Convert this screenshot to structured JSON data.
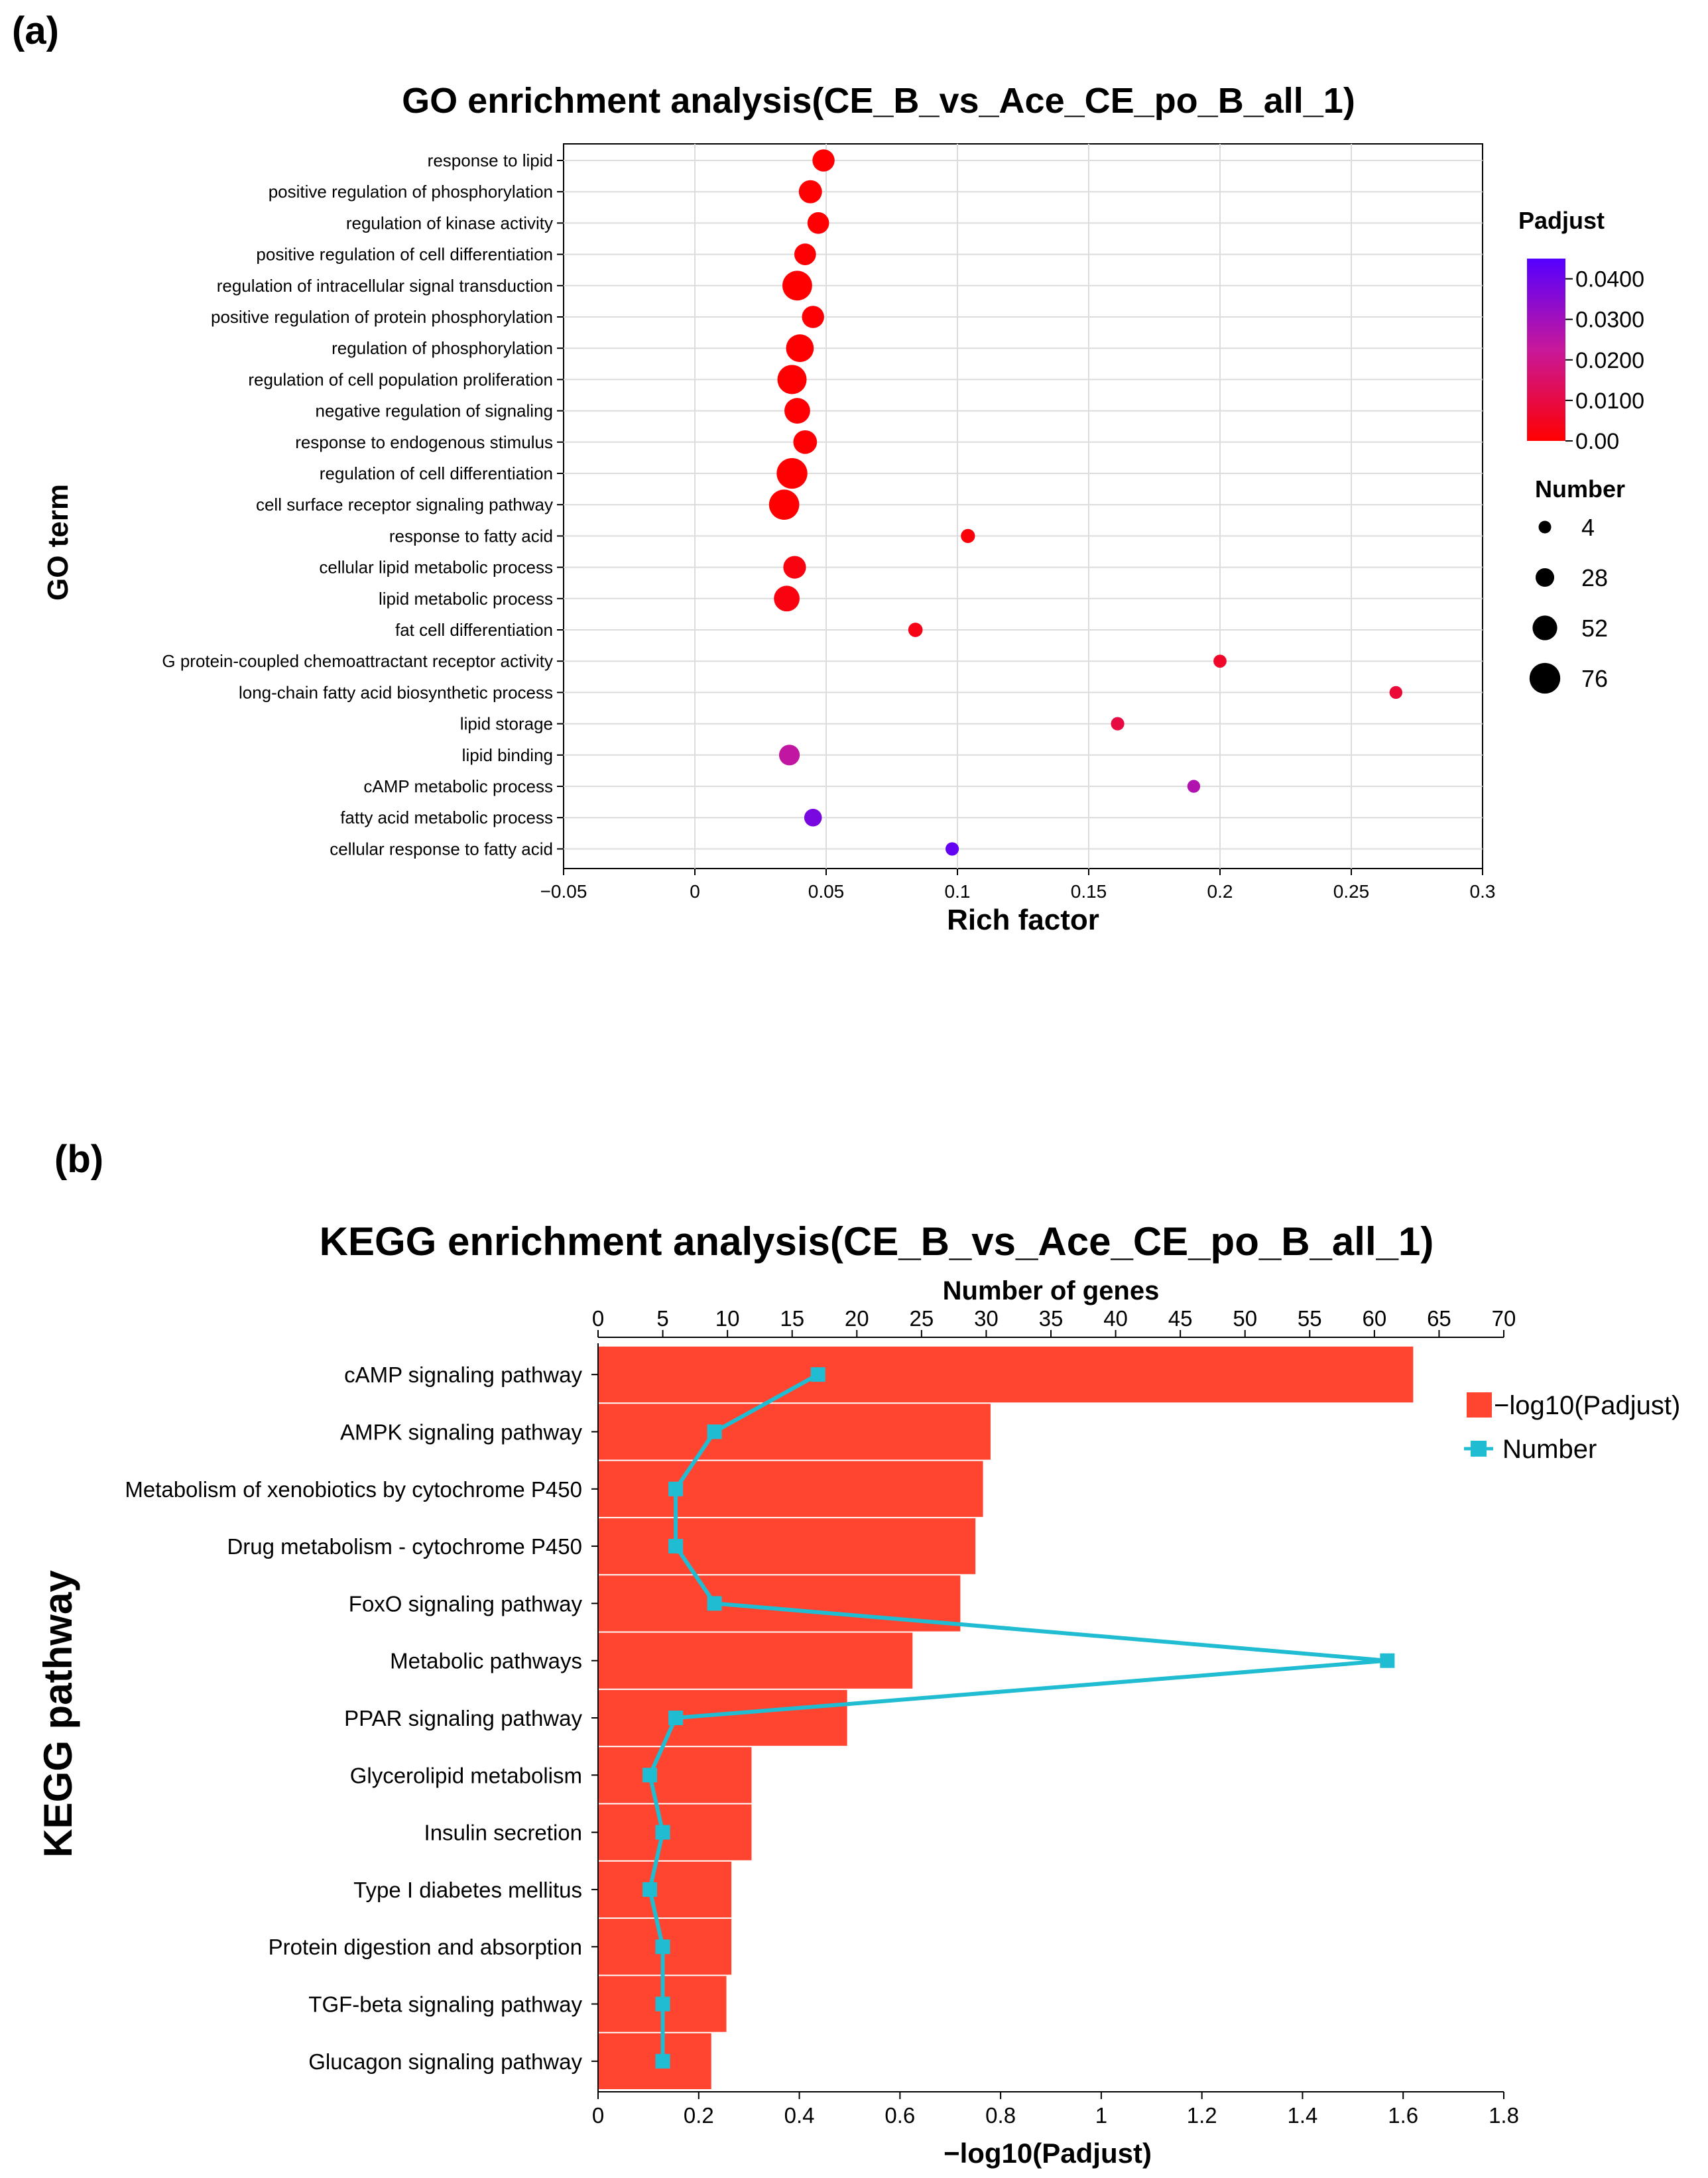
{
  "panel_labels": {
    "a": "(a)",
    "b": "(b)"
  },
  "colors": {
    "padj_low": "#ff0000",
    "padj_high": "#5500ff",
    "bar": "#ff4530",
    "line": "#1fbcd2",
    "grid": "#dcdcdc"
  },
  "chart_data": [
    {
      "id": "go",
      "type": "scatter",
      "title": "GO enrichment analysis(CE_B_vs_Ace_CE_po_B_all_1)",
      "xlabel": "Rich factor",
      "ylabel": "GO term",
      "xlim": [
        -0.05,
        0.3
      ],
      "xticks": [
        -0.05,
        0,
        0.05,
        0.1,
        0.15,
        0.2,
        0.25,
        0.3
      ],
      "xtick_labels": [
        "−0.05",
        "0",
        "0.05",
        "0.1",
        "0.15",
        "0.2",
        "0.25",
        "0.3"
      ],
      "color_legend": {
        "title": "Padjust",
        "min": 0,
        "max": 0.045,
        "ticks": [
          0,
          0.01,
          0.02,
          0.03,
          0.04
        ],
        "tick_labels": [
          "0.00",
          "0.0100",
          "0.0200",
          "0.0300",
          "0.0400"
        ]
      },
      "size_legend": {
        "title": "Number",
        "values": [
          4,
          28,
          52,
          76
        ]
      },
      "terms": [
        {
          "label": "response to lipid",
          "rich_factor": 0.049,
          "padjust": 0.0003,
          "number": 42
        },
        {
          "label": "positive regulation of phosphorylation",
          "rich_factor": 0.044,
          "padjust": 0.0003,
          "number": 46
        },
        {
          "label": "regulation of kinase activity",
          "rich_factor": 0.047,
          "padjust": 0.0004,
          "number": 40
        },
        {
          "label": "positive regulation of cell differentiation",
          "rich_factor": 0.042,
          "padjust": 0.0004,
          "number": 40
        },
        {
          "label": "regulation of intracellular signal transduction",
          "rich_factor": 0.039,
          "padjust": 0.0002,
          "number": 72
        },
        {
          "label": "positive regulation of protein phosphorylation",
          "rich_factor": 0.045,
          "padjust": 0.0004,
          "number": 42
        },
        {
          "label": "regulation of phosphorylation",
          "rich_factor": 0.04,
          "padjust": 0.0003,
          "number": 64
        },
        {
          "label": "regulation of cell population proliferation",
          "rich_factor": 0.037,
          "padjust": 0.0003,
          "number": 70
        },
        {
          "label": "negative regulation of signaling",
          "rich_factor": 0.039,
          "padjust": 0.0004,
          "number": 56
        },
        {
          "label": "response to endogenous stimulus",
          "rich_factor": 0.042,
          "padjust": 0.0004,
          "number": 48
        },
        {
          "label": "regulation of cell differentiation",
          "rich_factor": 0.037,
          "padjust": 0.0003,
          "number": 76
        },
        {
          "label": "cell surface receptor signaling pathway",
          "rich_factor": 0.034,
          "padjust": 0.0003,
          "number": 74
        },
        {
          "label": "response to fatty acid",
          "rich_factor": 0.104,
          "padjust": 0.0015,
          "number": 10
        },
        {
          "label": "cellular lipid metabolic process",
          "rich_factor": 0.038,
          "padjust": 0.0025,
          "number": 44
        },
        {
          "label": "lipid metabolic process",
          "rich_factor": 0.035,
          "padjust": 0.0025,
          "number": 56
        },
        {
          "label": "fat cell differentiation",
          "rich_factor": 0.084,
          "padjust": 0.003,
          "number": 11
        },
        {
          "label": "G protein-coupled chemoattractant receptor activity",
          "rich_factor": 0.2,
          "padjust": 0.006,
          "number": 6
        },
        {
          "label": "long-chain fatty acid biosynthetic process",
          "rich_factor": 0.267,
          "padjust": 0.008,
          "number": 5
        },
        {
          "label": "lipid storage",
          "rich_factor": 0.161,
          "padjust": 0.01,
          "number": 7
        },
        {
          "label": "lipid binding",
          "rich_factor": 0.036,
          "padjust": 0.024,
          "number": 36
        },
        {
          "label": "cAMP metabolic process",
          "rich_factor": 0.19,
          "padjust": 0.027,
          "number": 5
        },
        {
          "label": "fatty acid metabolic process",
          "rich_factor": 0.045,
          "padjust": 0.038,
          "number": 24
        },
        {
          "label": "cellular response to fatty acid",
          "rich_factor": 0.098,
          "padjust": 0.042,
          "number": 7
        }
      ]
    },
    {
      "id": "kegg",
      "type": "bar",
      "title": "KEGG enrichment analysis(CE_B_vs_Ace_CE_po_B_all_1)",
      "xlabel": "−log10(Padjust)",
      "x2label": "Number of genes",
      "ylabel": "KEGG pathway",
      "xlim": [
        0,
        1.8
      ],
      "xticks": [
        0,
        0.2,
        0.4,
        0.6,
        0.8,
        1,
        1.2,
        1.4,
        1.6,
        1.8
      ],
      "xtick_labels": [
        "0",
        "0.2",
        "0.4",
        "0.6",
        "0.8",
        "1",
        "1.2",
        "1.4",
        "1.6",
        "1.8"
      ],
      "x2lim": [
        0,
        70
      ],
      "x2ticks": [
        0,
        5,
        10,
        15,
        20,
        25,
        30,
        35,
        40,
        45,
        50,
        55,
        60,
        65,
        70
      ],
      "legend": {
        "bar": "−log10(Padjust)",
        "line": "Number"
      },
      "categories": [
        "cAMP signaling pathway",
        "AMPK signaling pathway",
        "Metabolism of xenobiotics by cytochrome P450",
        "Drug metabolism - cytochrome P450",
        "FoxO signaling pathway",
        "Metabolic pathways",
        "PPAR signaling pathway",
        "Glycerolipid metabolism",
        "Insulin secretion",
        "Type I diabetes mellitus",
        "Protein digestion and absorption",
        "TGF-beta signaling pathway",
        "Glucagon signaling pathway"
      ],
      "neg_log10_padjust": [
        1.62,
        0.78,
        0.765,
        0.75,
        0.72,
        0.625,
        0.495,
        0.305,
        0.305,
        0.265,
        0.265,
        0.255,
        0.225
      ],
      "number": [
        17,
        9,
        6,
        6,
        9,
        61,
        6,
        4,
        5,
        4,
        5,
        5,
        5
      ]
    }
  ]
}
